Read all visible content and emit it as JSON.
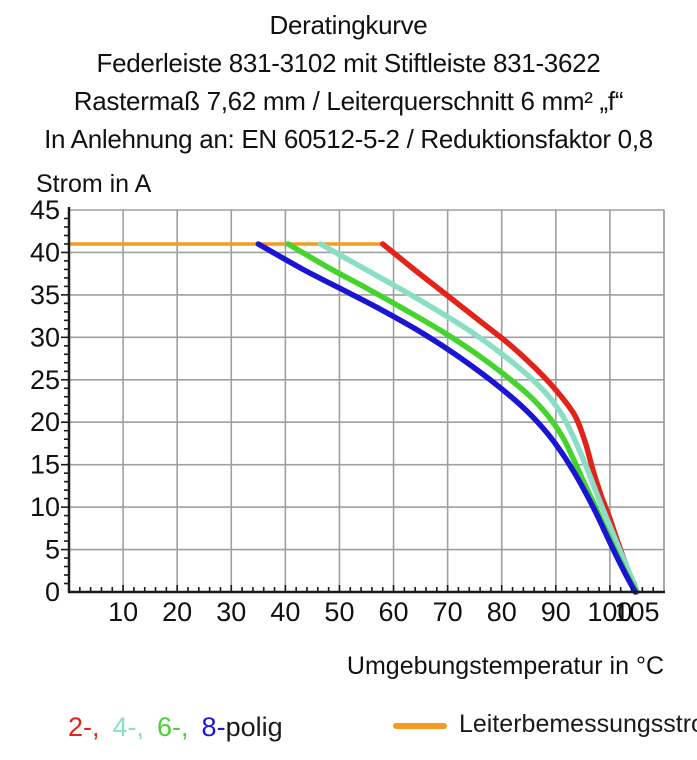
{
  "header": {
    "title_lines": [
      "Deratingkurve",
      "Federleiste 831-3102 mit Stiftleiste 831-3622",
      "Rastermaß 7,62 mm / Leiterquerschnitt 6 mm² „f“",
      "In Anlehnung an: EN 60512-5-2 / Reduktionsfaktor 0,8"
    ]
  },
  "chart_data": {
    "type": "line",
    "title": "Deratingkurve",
    "xlabel": "Umgebungstemperatur in °C",
    "ylabel": "Strom in A",
    "xlim": [
      0,
      110
    ],
    "ylim": [
      0,
      45
    ],
    "x_major_ticks": [
      10,
      20,
      30,
      40,
      50,
      60,
      70,
      80,
      90,
      100,
      105
    ],
    "x_minor_step": 2,
    "y_major_ticks": [
      0,
      5,
      10,
      15,
      20,
      25,
      30,
      35,
      40,
      45
    ],
    "y_minor_step": 1,
    "grid": true,
    "grid_color": "#9ba1a1",
    "axis_color": "#1a1a1a",
    "reference_line": {
      "name": "Leiterbemessungsstrom",
      "current_a": 41,
      "x_range": [
        0,
        58
      ],
      "color": "#f59b21"
    },
    "series": [
      {
        "name": "2-polig",
        "color": "#e2231a",
        "points": [
          [
            58,
            41
          ],
          [
            64,
            37.9
          ],
          [
            70,
            34.9
          ],
          [
            76,
            31.9
          ],
          [
            81,
            29.4
          ],
          [
            86,
            26.5
          ],
          [
            90,
            23.8
          ],
          [
            93.5,
            20.8
          ],
          [
            95.5,
            17.5
          ],
          [
            96.8,
            14.5
          ],
          [
            98.3,
            11.5
          ],
          [
            99.8,
            9
          ],
          [
            101.3,
            6.2
          ],
          [
            102.5,
            4
          ],
          [
            103.6,
            2.2
          ],
          [
            104.5,
            0.9
          ],
          [
            105,
            0
          ]
        ]
      },
      {
        "name": "4-polig",
        "color": "#8adec5",
        "points": [
          [
            46.5,
            41
          ],
          [
            54,
            38.3
          ],
          [
            61,
            35.8
          ],
          [
            68,
            33.2
          ],
          [
            74,
            30.8
          ],
          [
            79.5,
            28.3
          ],
          [
            84.5,
            25.7
          ],
          [
            88.5,
            23.2
          ],
          [
            91.5,
            20.5
          ],
          [
            93.8,
            17.5
          ],
          [
            95.8,
            14.5
          ],
          [
            97.5,
            11.7
          ],
          [
            99,
            9.3
          ],
          [
            100.5,
            7
          ],
          [
            101.9,
            4.8
          ],
          [
            103.1,
            3
          ],
          [
            104.1,
            1.5
          ],
          [
            105,
            0
          ]
        ]
      },
      {
        "name": "6-polig",
        "color": "#45d42d",
        "points": [
          [
            40.5,
            41
          ],
          [
            48,
            38.2
          ],
          [
            55,
            35.8
          ],
          [
            62,
            33.3
          ],
          [
            69,
            30.7
          ],
          [
            75,
            28.2
          ],
          [
            80.5,
            25.6
          ],
          [
            85,
            23.2
          ],
          [
            88.5,
            20.8
          ],
          [
            91.3,
            18.2
          ],
          [
            93.5,
            15.3
          ],
          [
            95.5,
            12.5
          ],
          [
            97.2,
            10.2
          ],
          [
            98.8,
            7.9
          ],
          [
            100.4,
            5.7
          ],
          [
            101.8,
            3.8
          ],
          [
            103,
            2.2
          ],
          [
            104.1,
            0.9
          ],
          [
            104.9,
            0
          ]
        ]
      },
      {
        "name": "8-polig",
        "color": "#1a15d3",
        "points": [
          [
            35,
            41
          ],
          [
            43,
            38.1
          ],
          [
            50,
            35.8
          ],
          [
            57,
            33.5
          ],
          [
            64,
            31
          ],
          [
            70,
            28.6
          ],
          [
            76,
            25.9
          ],
          [
            81,
            23.4
          ],
          [
            85,
            21.1
          ],
          [
            88.3,
            18.8
          ],
          [
            91,
            16.5
          ],
          [
            93.3,
            14.2
          ],
          [
            95.5,
            11.7
          ],
          [
            97.3,
            9.5
          ],
          [
            99,
            7.2
          ],
          [
            100.4,
            5.3
          ],
          [
            101.7,
            3.6
          ],
          [
            102.9,
            2.1
          ],
          [
            103.9,
            0.9
          ],
          [
            104.7,
            0
          ]
        ]
      }
    ]
  },
  "legend": {
    "poles": {
      "items": [
        {
          "label": "2-,",
          "color": "#e2231a"
        },
        {
          "label": "4-,",
          "color": "#8adec5"
        },
        {
          "label": "6-,",
          "color": "#45d42d"
        },
        {
          "label": "8-",
          "color": "#1a15d3"
        }
      ],
      "suffix": "polig"
    },
    "reference": {
      "label": "Leiterbemessungsstrom",
      "color": "#f59b21"
    }
  },
  "axis_titles": {
    "y": "Strom in A",
    "x": "Umgebungstemperatur in °C"
  }
}
